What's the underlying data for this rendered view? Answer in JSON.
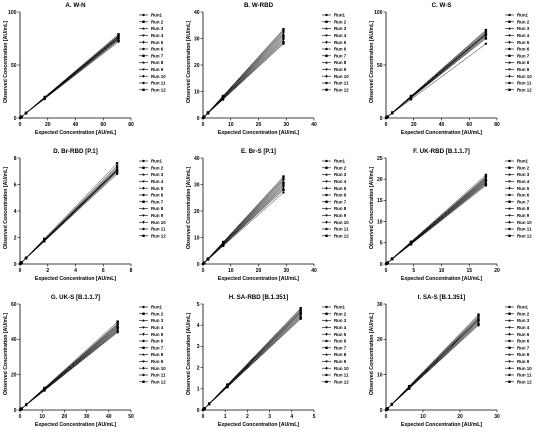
{
  "runs": [
    "Run1",
    "Run 2",
    "Run 3",
    "Run 4",
    "Run 5",
    "Run 6",
    "Run 7",
    "Run 8",
    "Run 9",
    "Run 10",
    "Run 11",
    "Run 12"
  ],
  "chart_data": [
    {
      "type": "line",
      "title": "A. W-N",
      "xlabel": "Expected Concentration [AU/mL]",
      "ylabel": "Observed Concentration [AU/mL]",
      "xlim": [
        0,
        80
      ],
      "ylim": [
        0,
        100
      ],
      "xticks": [
        0,
        20,
        40,
        60,
        80
      ],
      "yticks": [
        0,
        50,
        100
      ],
      "x": [
        0.27,
        1.1,
        4.4,
        17.8,
        71
      ],
      "series_final_values": [
        72,
        73,
        74,
        74.5,
        75,
        75.5,
        76,
        76.5,
        77,
        77.5,
        78,
        79
      ]
    },
    {
      "type": "line",
      "title": "B. W-RBD",
      "xlabel": "Expected Concentration [AU/mL]",
      "ylabel": "Observed Concentration [AU/mL]",
      "xlim": [
        0,
        40
      ],
      "ylim": [
        0,
        40
      ],
      "xticks": [
        0,
        10,
        20,
        30,
        40
      ],
      "yticks": [
        0,
        10,
        20,
        30,
        40
      ],
      "x": [
        0.11,
        0.45,
        1.8,
        7.2,
        29
      ],
      "series_final_values": [
        28,
        28.5,
        29,
        29.5,
        30,
        30.5,
        31,
        31.5,
        32,
        32.5,
        33,
        33.5
      ]
    },
    {
      "type": "line",
      "title": "C. W-S",
      "xlabel": "Expected Concentration [AU/mL]",
      "ylabel": "Observed Concentration [AU/mL]",
      "xlim": [
        0,
        80
      ],
      "ylim": [
        0,
        100
      ],
      "xticks": [
        0,
        20,
        40,
        60,
        80
      ],
      "yticks": [
        0,
        50,
        100
      ],
      "x": [
        0.28,
        1.1,
        4.5,
        18,
        72
      ],
      "series_final_values": [
        70,
        75,
        76,
        77,
        78,
        78.5,
        79,
        79.5,
        80,
        81,
        82,
        83
      ]
    },
    {
      "type": "line",
      "title": "D. Br-RBD [P.1]",
      "xlabel": "Expected Concentration [AU/mL]",
      "ylabel": "Observed Concentration [AU/mL]",
      "xlim": [
        0,
        8
      ],
      "ylim": [
        0,
        8
      ],
      "xticks": [
        0,
        2,
        4,
        6,
        8
      ],
      "yticks": [
        0,
        2,
        4,
        6,
        8
      ],
      "x": [
        0.03,
        0.11,
        0.44,
        1.75,
        7
      ],
      "series_final_values": [
        6.8,
        6.9,
        7.0,
        7.0,
        7.05,
        7.1,
        7.1,
        7.15,
        7.2,
        7.3,
        7.4,
        7.6
      ]
    },
    {
      "type": "line",
      "title": "E. Br-S [P.1]",
      "xlabel": "Expected Concentration [AU/mL]",
      "ylabel": "Observed Concentration [AU/mL]",
      "xlim": [
        0,
        40
      ],
      "ylim": [
        0,
        40
      ],
      "xticks": [
        0,
        10,
        20,
        30,
        40
      ],
      "yticks": [
        0,
        10,
        20,
        30,
        40
      ],
      "x": [
        0.11,
        0.45,
        1.8,
        7.3,
        29
      ],
      "series_final_values": [
        27,
        28,
        28.5,
        29,
        29.5,
        30,
        30.5,
        31,
        31.5,
        32,
        32.5,
        33
      ]
    },
    {
      "type": "line",
      "title": "F. UK-RBD [B.1.1.7]",
      "xlabel": "Expected Concentration [AU/mL]",
      "ylabel": "Observed Concentration [AU/mL]",
      "xlim": [
        0,
        20
      ],
      "ylim": [
        0,
        25
      ],
      "xticks": [
        0,
        5,
        10,
        15,
        20
      ],
      "yticks": [
        0,
        5,
        10,
        15,
        20,
        25
      ],
      "x": [
        0.07,
        0.28,
        1.1,
        4.5,
        18
      ],
      "series_final_values": [
        18.5,
        18.8,
        19,
        19.2,
        19.4,
        19.6,
        19.8,
        20,
        20.2,
        20.4,
        20.6,
        21
      ]
    },
    {
      "type": "line",
      "title": "G. UK-S [B.1.1.7]",
      "xlabel": "Expected Concentration [AU/mL]",
      "ylabel": "Observed Concentration [AU/mL]",
      "xlim": [
        0,
        50
      ],
      "ylim": [
        0,
        60
      ],
      "xticks": [
        0,
        10,
        20,
        30,
        40,
        50
      ],
      "yticks": [
        0,
        20,
        40,
        60
      ],
      "x": [
        0.17,
        0.7,
        2.8,
        11,
        44
      ],
      "series_final_values": [
        44,
        44.5,
        45,
        45.5,
        46,
        46.5,
        47,
        47.5,
        48,
        48.5,
        49,
        50
      ]
    },
    {
      "type": "line",
      "title": "H. SA-RBD [B.1.351]",
      "xlabel": "Expected Concentration [AU/mL]",
      "ylabel": "Observed Concentration [AU/mL]",
      "xlim": [
        0,
        5
      ],
      "ylim": [
        0,
        5
      ],
      "xticks": [
        0,
        1,
        2,
        3,
        4,
        5
      ],
      "yticks": [
        0,
        1,
        2,
        3,
        4,
        5
      ],
      "x": [
        0.017,
        0.07,
        0.28,
        1.1,
        4.4
      ],
      "series_final_values": [
        4.3,
        4.35,
        4.4,
        4.45,
        4.5,
        4.55,
        4.6,
        4.62,
        4.65,
        4.7,
        4.75,
        4.8
      ]
    },
    {
      "type": "line",
      "title": "I. SA-S [B.1.351]",
      "xlabel": "Expected Concentration [AU/mL]",
      "ylabel": "Observed Concentration [AU/mL]",
      "xlim": [
        0,
        30
      ],
      "ylim": [
        0,
        30
      ],
      "xticks": [
        0,
        10,
        20,
        30
      ],
      "yticks": [
        0,
        10,
        20,
        30
      ],
      "x": [
        0.1,
        0.39,
        1.56,
        6.25,
        25
      ],
      "series_final_values": [
        24,
        24.3,
        24.6,
        24.9,
        25.2,
        25.4,
        25.6,
        25.8,
        26,
        26.3,
        26.6,
        27
      ]
    }
  ]
}
